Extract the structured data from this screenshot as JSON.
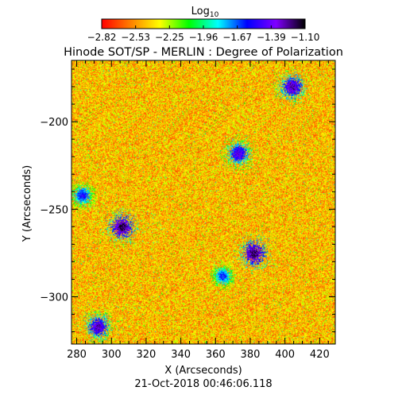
{
  "colorbar": {
    "label_main": "Log",
    "label_sub": "10",
    "ticks": [
      "-2.82",
      "-2.53",
      "-2.25",
      "-1.96",
      "-1.67",
      "-1.39",
      "-1.10"
    ],
    "colors": [
      "#ff0000",
      "#ff8000",
      "#ffff00",
      "#00ff00",
      "#00ffff",
      "#0000ff",
      "#8000ff",
      "#000000"
    ]
  },
  "chart_data": {
    "type": "heatmap",
    "title": "Hinode SOT/SP - MERLIN : Degree of Polarization",
    "xlabel": "X (Arcseconds)",
    "ylabel": "Y (Arcseconds)",
    "xlim": [
      277,
      429
    ],
    "ylim": [
      -327,
      -165
    ],
    "xticks": [
      280,
      300,
      320,
      340,
      360,
      380,
      400,
      420
    ],
    "yticks": [
      -300,
      -250,
      -200
    ],
    "value_range_log10": [
      -2.82,
      -1.1
    ],
    "background_level_log10": -2.45,
    "strong_polarization_regions": [
      {
        "x": 306,
        "y": -260,
        "peak_log10": -1.15
      },
      {
        "x": 382,
        "y": -275,
        "peak_log10": -1.15
      },
      {
        "x": 404,
        "y": -180,
        "peak_log10": -1.25
      },
      {
        "x": 373,
        "y": -218,
        "peak_log10": -1.35
      },
      {
        "x": 292,
        "y": -317,
        "peak_log10": -1.3
      },
      {
        "x": 283,
        "y": -242,
        "peak_log10": -1.55
      },
      {
        "x": 364,
        "y": -288,
        "peak_log10": -1.6
      }
    ]
  },
  "footer": {
    "timestamp": "21-Oct-2018 00:46:06.118"
  }
}
